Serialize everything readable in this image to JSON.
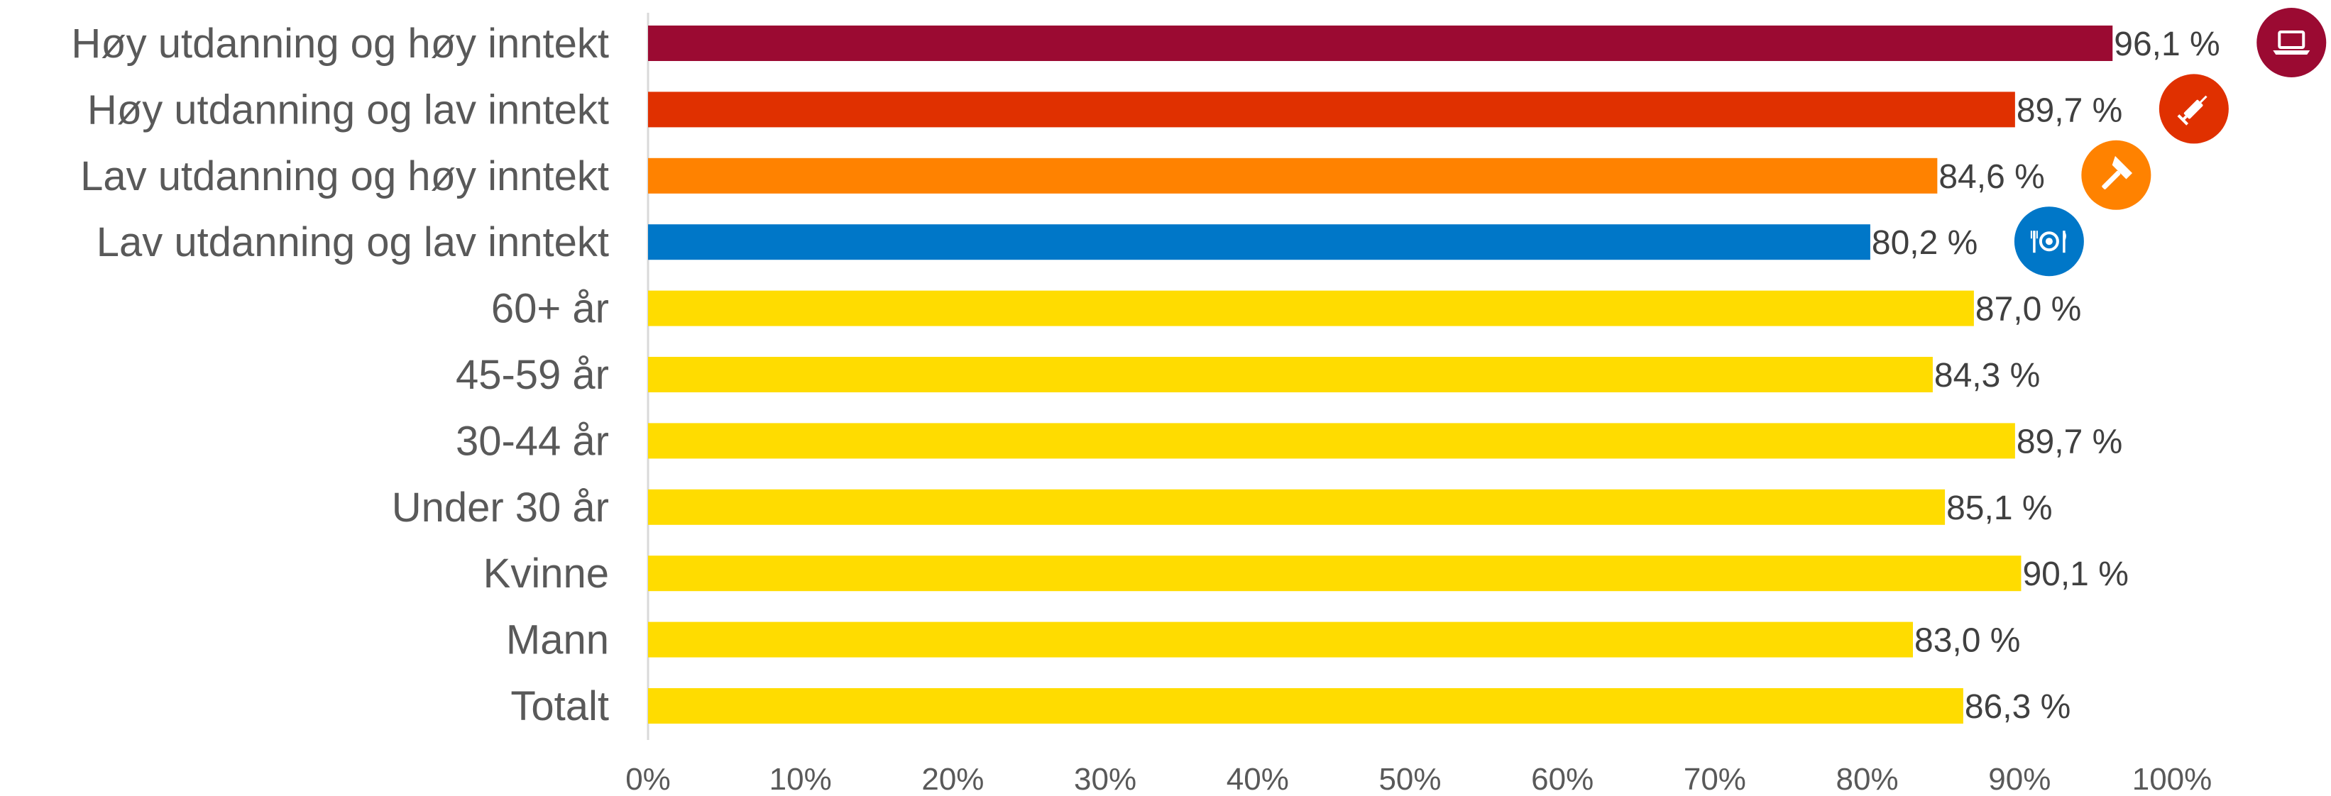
{
  "chart_data": {
    "type": "bar",
    "orientation": "horizontal",
    "categories": [
      "Høy utdanning og høy inntekt",
      "Høy utdanning og lav inntekt",
      "Lav utdanning og høy inntekt",
      "Lav utdanning og lav inntekt",
      "60+ år",
      "45-59 år",
      "30-44 år",
      "Under 30 år",
      "Kvinne",
      "Mann",
      "Totalt"
    ],
    "values": [
      96.1,
      89.7,
      84.6,
      80.2,
      87.0,
      84.3,
      89.7,
      85.1,
      90.1,
      83.0,
      86.3
    ],
    "value_labels": [
      "96,1 %",
      "89,7 %",
      "84,6 %",
      "80,2 %",
      "87,0 %",
      "84,3 %",
      "89,7 %",
      "85,1 %",
      "90,1 %",
      "83,0 %",
      "86,3 %"
    ],
    "colors": [
      "#9b0a32",
      "#e03000",
      "#ff8200",
      "#0077c8",
      "#ffdc00",
      "#ffdc00",
      "#ffdc00",
      "#ffdc00",
      "#ffdc00",
      "#ffdc00",
      "#ffdc00"
    ],
    "icons": [
      "laptop-icon",
      "syringe-icon",
      "hammer-icon",
      "plate-cutlery-icon",
      null,
      null,
      null,
      null,
      null,
      null,
      null
    ],
    "xlim": [
      0,
      100
    ],
    "x_ticks": [
      0,
      10,
      20,
      30,
      40,
      50,
      60,
      70,
      80,
      90,
      100
    ],
    "x_tick_labels": [
      "0%",
      "10%",
      "20%",
      "30%",
      "40%",
      "50%",
      "60%",
      "70%",
      "80%",
      "90%",
      "100%"
    ],
    "grid": false,
    "legend": "none"
  }
}
